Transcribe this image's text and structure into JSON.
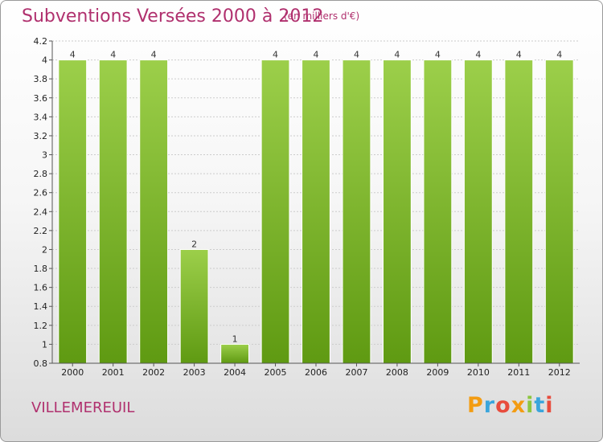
{
  "header": {
    "title": "Subventions Versées 2000 à 2012",
    "unit": "(en milliers d'€)"
  },
  "footer": {
    "commune": "VILLEMEREUIL",
    "brand": "Proxiti",
    "brand_colors": [
      "#f39c12",
      "#3aa5dc",
      "#e84c3d",
      "#f39c12",
      "#8cc63f",
      "#3aa5dc",
      "#e84c3d"
    ]
  },
  "colors": {
    "title": "#b0306e",
    "bar_top": "#9ccf4a",
    "bar_bottom": "#5f9a12",
    "grid": "#cccccc",
    "axis": "#555555"
  },
  "chart_data": {
    "type": "bar",
    "title": "Subventions Versées 2000 à 2012",
    "subtitle": "(en milliers d'€)",
    "xlabel": "",
    "ylabel": "",
    "categories": [
      "2000",
      "2001",
      "2002",
      "2003",
      "2004",
      "2005",
      "2006",
      "2007",
      "2008",
      "2009",
      "2010",
      "2011",
      "2012"
    ],
    "values": [
      4,
      4,
      4,
      2,
      1,
      4,
      4,
      4,
      4,
      4,
      4,
      4,
      4
    ],
    "data_labels": [
      "4",
      "4",
      "4",
      "2",
      "1",
      "4",
      "4",
      "4",
      "4",
      "4",
      "4",
      "4",
      "4"
    ],
    "ylim": [
      0.8,
      4.2
    ],
    "yticks": [
      "0.8",
      "1",
      "1.2",
      "1.4",
      "1.6",
      "1.8",
      "2",
      "2.2",
      "2.4",
      "2.6",
      "2.8",
      "3",
      "3.2",
      "3.4",
      "3.6",
      "3.8",
      "4",
      "4.2"
    ],
    "ytick_values": [
      0.8,
      1.0,
      1.2,
      1.4,
      1.6,
      1.8,
      2.0,
      2.2,
      2.4,
      2.6,
      2.8,
      3.0,
      3.2,
      3.4,
      3.6,
      3.8,
      4.0,
      4.2
    ],
    "grid": true,
    "legend": "none"
  }
}
